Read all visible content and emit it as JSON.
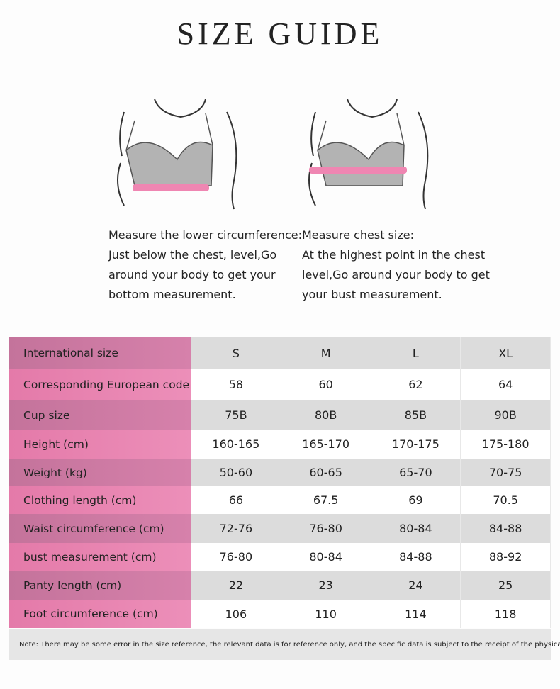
{
  "title": "SIZE GUIDE",
  "instructions": [
    {
      "lines": [
        "Measure the lower circumference:",
        "Just below the chest, level,Go",
        "around your body to get your",
        "bottom measurement."
      ]
    },
    {
      "lines": [
        "Measure chest size:",
        "At the highest point in the chest",
        "level,Go around your body to get",
        "your bust measurement."
      ]
    }
  ],
  "table": {
    "header": [
      "International size",
      "S",
      "M",
      "L",
      "XL"
    ],
    "rows": [
      [
        "Corresponding European code",
        "58",
        "60",
        "62",
        "64"
      ],
      [
        "Cup size",
        "75B",
        "80B",
        "85B",
        "90B"
      ],
      [
        "Height (cm)",
        "160-165",
        "165-170",
        "170-175",
        "175-180"
      ],
      [
        "Weight (kg)",
        "50-60",
        "60-65",
        "65-70",
        "70-75"
      ],
      [
        "Clothing length (cm)",
        "66",
        "67.5",
        "69",
        "70.5"
      ],
      [
        "Waist circumference (cm)",
        "72-76",
        "76-80",
        "80-84",
        "84-88"
      ],
      [
        "bust measurement (cm)",
        "76-80",
        "80-84",
        "84-88",
        "88-92"
      ],
      [
        "Panty length (cm)",
        "22",
        "23",
        "24",
        "25"
      ],
      [
        "Foot circumference (cm)",
        "106",
        "110",
        "114",
        "118"
      ]
    ]
  },
  "note": "Note: There may be some error in the size reference, the relevant data is for reference only, and the specific data is subject to the receipt of the physical object"
}
